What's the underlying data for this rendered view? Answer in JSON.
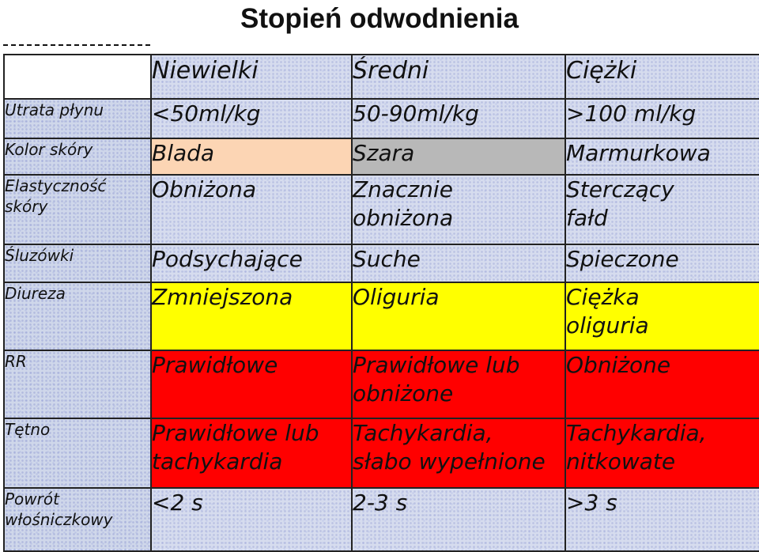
{
  "title": "Stopień odwodnienia",
  "columns": [
    "Niewielki",
    "Średni",
    "Ciężki"
  ],
  "rows": [
    {
      "label": "Utrata płynu",
      "values": [
        "<50ml/kg",
        "50-90ml/kg",
        ">100 ml/kg"
      ]
    },
    {
      "label": "Kolor skóry",
      "values": [
        "Blada",
        "Szara",
        "Marmurkowa"
      ],
      "colors": [
        "#fcd5b4",
        "#b8b8b8",
        "#d6dcee"
      ]
    },
    {
      "label": "Elastyczność\nskóry",
      "values": [
        "Obniżona",
        "Znacznie\nobniżona",
        "Sterczący\nfałd"
      ]
    },
    {
      "label": "Śluzówki",
      "values": [
        "Podsychające",
        "Suche",
        "Spieczone"
      ]
    },
    {
      "label": "Diureza",
      "values": [
        "Zmniejszona",
        "Oliguria",
        "Ciężka\noliguria"
      ],
      "colors": [
        "#ffff00",
        "#ffff00",
        "#ffff00"
      ]
    },
    {
      "label": "RR",
      "values": [
        "Prawidłowe",
        "Prawidłowe lub\nobniżone",
        "Obniżone"
      ],
      "colors": [
        "#ff0000",
        "#ff0000",
        "#ff0000"
      ]
    },
    {
      "label": "Tętno",
      "values": [
        "Prawidłowe lub\ntachykardia",
        "Tachykardia,\nsłabo wypełnione",
        "Tachykardia,\nnitkowate"
      ],
      "colors": [
        "#ff0000",
        "#ff0000",
        "#ff0000"
      ]
    },
    {
      "label": "Powrót\nwłośniczkowy",
      "values": [
        "<2 s",
        "2-3 s",
        ">3 s"
      ]
    }
  ]
}
